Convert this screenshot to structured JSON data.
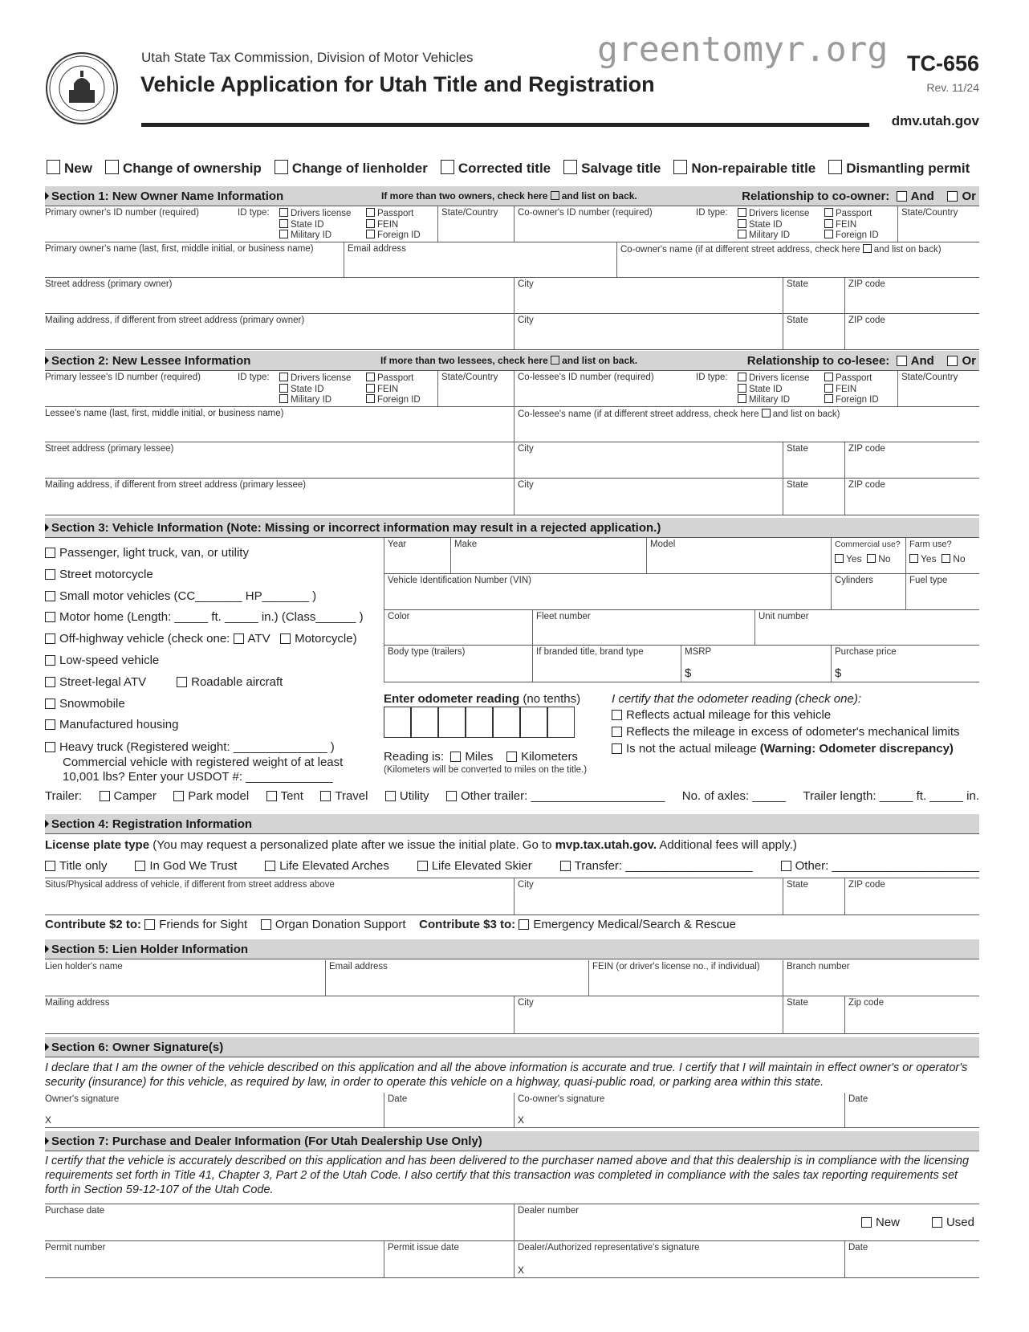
{
  "header": {
    "agency": "Utah State Tax Commission, Division of Motor Vehicles",
    "title": "Vehicle Application for Utah Title and Registration",
    "form_number": "TC-656",
    "revision": "Rev. 11/24",
    "website": "dmv.utah.gov",
    "watermark": "greentomyr.org",
    "seal_text": "UTAH STATE TAX COMMISSION SEAL"
  },
  "transaction_types": [
    "New",
    "Change of ownership",
    "Change of lienholder",
    "Corrected title",
    "Salvage title",
    "Non-repairable title",
    "Dismantling permit"
  ],
  "id_type_label": "ID type:",
  "id_types": [
    "Drivers license",
    "State ID",
    "Military ID",
    "Passport",
    "FEIN",
    "Foreign ID"
  ],
  "state_country": "State/Country",
  "city": "City",
  "state": "State",
  "zip": "ZIP code",
  "and": "And",
  "or": "Or",
  "section1": {
    "title": "Section 1: New Owner Name Information",
    "more_note": "If more than two owners, check here",
    "more_note2": "and list on back.",
    "relationship": "Relationship to co-owner:",
    "primary_id": "Primary owner's ID number (required)",
    "co_id": "Co-owner's ID number (required)",
    "primary_name": "Primary owner's name (last, first, middle initial, or business name)",
    "email": "Email address",
    "co_name": "Co-owner's name (if at different street address, check here",
    "co_name2": "and list on back)",
    "street": "Street address (primary owner)",
    "mailing": "Mailing address, if different from street address (primary owner)"
  },
  "section2": {
    "title": "Section 2: New Lessee Information",
    "more_note": "If more than two lessees, check here",
    "more_note2": "and list on back.",
    "relationship": "Relationship to co-lesee:",
    "primary_id": "Primary lessee's ID number (required)",
    "co_id": "Co-lessee's ID number (required)",
    "primary_name": "Lessee's name (last, first, middle initial, or business name)",
    "co_name": "Co-lessee's name (if at different street address, check here",
    "co_name2": "and list on back)",
    "street": "Street address (primary lessee)",
    "mailing": "Mailing address, if different from street address (primary lessee)"
  },
  "section3": {
    "title": "Section 3: Vehicle Information (Note: Missing or incorrect information may result in a rejected application.)",
    "types": {
      "passenger": "Passenger, light truck, van, or utility",
      "motorcycle": "Street motorcycle",
      "small": "Small motor vehicles (CC_______ HP_______ )",
      "motorhome": "Motor home (Length: _____ ft. _____ in.) (Class______ )",
      "ohv": "Off-highway vehicle (check one:",
      "ohv_atv": "ATV",
      "ohv_moto": "Motorcycle)",
      "lowspeed": "Low-speed vehicle",
      "atv": "Street-legal ATV",
      "aircraft": "Roadable aircraft",
      "snowmobile": "Snowmobile",
      "manufactured": "Manufactured housing",
      "heavy": "Heavy truck (Registered weight: ______________ )",
      "heavy2": "Commercial vehicle with registered weight of at least",
      "heavy3": "10,001 lbs? Enter your USDOT #: _____________"
    },
    "fields": {
      "year": "Year",
      "make": "Make",
      "model": "Model",
      "commercial": "Commercial use?",
      "farm": "Farm use?",
      "yes": "Yes",
      "no": "No",
      "vin": "Vehicle Identification Number (VIN)",
      "cylinders": "Cylinders",
      "fuel": "Fuel type",
      "color": "Color",
      "fleet": "Fleet number",
      "unit": "Unit number",
      "body": "Body type (trailers)",
      "brand": "If branded title, brand type",
      "msrp": "MSRP",
      "price": "Purchase price",
      "dollar": "$"
    },
    "odometer": {
      "label": "Enter odometer reading",
      "label2": " (no tenths)",
      "reading_is": "Reading is:",
      "miles": "Miles",
      "km": "Kilometers",
      "note": "(Kilometers will be converted to miles on the title.)",
      "certify": "I certify that the odometer reading (check one):",
      "opt1": "Reflects actual mileage for this vehicle",
      "opt2": "Reflects the mileage in excess of odometer's mechanical limits",
      "opt3": "Is not the actual mileage ",
      "opt3b": "(Warning: Odometer discrepancy)"
    },
    "trailer": {
      "label": "Trailer:",
      "camper": "Camper",
      "park": "Park model",
      "tent": "Tent",
      "travel": "Travel",
      "utility": "Utility",
      "other": "Other trailer: ____________________",
      "axles": "No. of axles: _____",
      "length": "Trailer length: _____ ft. _____ in."
    }
  },
  "section4": {
    "title": "Section 4: Registration Information",
    "plate_label": "License plate type",
    "plate_note": " (You may request a personalized plate after we issue the initial plate. Go to ",
    "plate_url": "mvp.tax.utah.gov.",
    "plate_note2": " Additional fees will apply.)",
    "plates": [
      "Title only",
      "In God We Trust",
      "Life Elevated Arches",
      "Life Elevated Skier",
      "Transfer: ___________________",
      "Other: ______________________"
    ],
    "situs": "Situs/Physical address of vehicle, if different from street address above",
    "contribute2": "Contribute $2 to:",
    "friends": "Friends for Sight",
    "organ": "Organ Donation Support",
    "contribute3": "Contribute $3 to:",
    "ems": "Emergency Medical/Search & Rescue"
  },
  "section5": {
    "title": "Section 5: Lien Holder Information",
    "name": "Lien holder's name",
    "email": "Email address",
    "fein": "FEIN (or driver's license no., if individual)",
    "branch": "Branch number",
    "mailing": "Mailing address",
    "zip": "Zip code"
  },
  "section6": {
    "title": "Section 6: Owner Signature(s)",
    "declaration": "I declare that I am the owner of the vehicle described on this application and all the above information is accurate and true. I certify that I will maintain in effect owner's or operator's security (insurance) for this vehicle, as required by law, in order to operate this vehicle on a highway, quasi-public road, or parking area within this state.",
    "owner_sig": "Owner's signature",
    "date": "Date",
    "co_sig": "Co-owner's signature",
    "x": "X"
  },
  "section7": {
    "title": "Section 7: Purchase and Dealer Information (For Utah Dealership Use Only)",
    "certify": "I certify that the vehicle is accurately described on this application and has been delivered to the purchaser named above and that this dealership is in compliance with the licensing requirements set forth in Title 41, Chapter 3, Part 2 of the Utah Code. I also certify that this transaction was completed in compliance with the sales tax reporting requirements set forth in Section 59-12-107 of the Utah Code.",
    "purchase_date": "Purchase date",
    "dealer_number": "Dealer number",
    "new": "New",
    "used": "Used",
    "permit": "Permit number",
    "permit_date": "Permit issue date",
    "dealer_sig": "Dealer/Authorized representative's signature",
    "date": "Date",
    "x": "X"
  }
}
